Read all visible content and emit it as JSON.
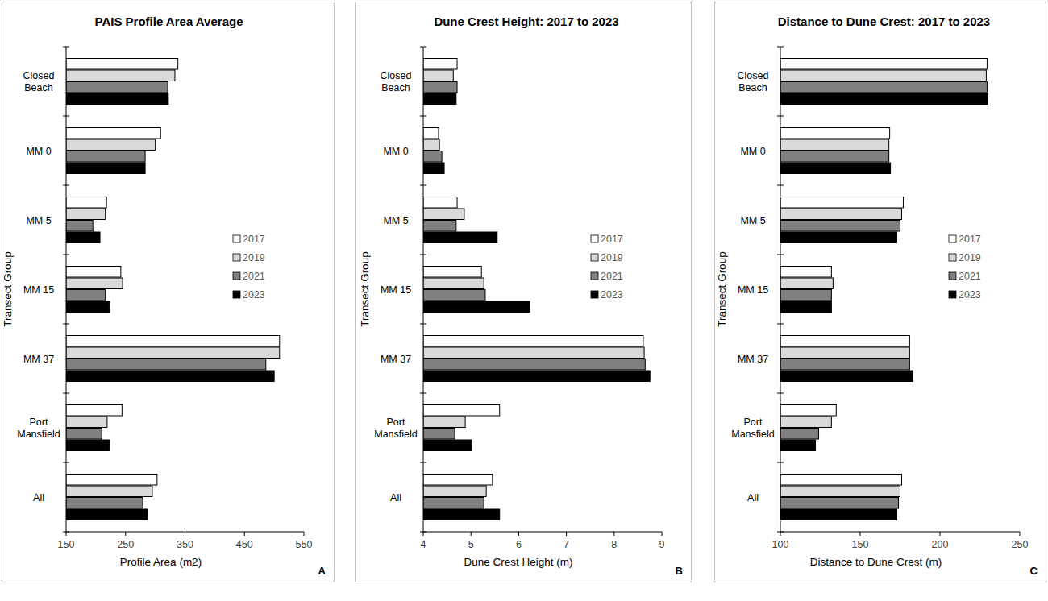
{
  "chart_data": [
    {
      "type": "bar",
      "orientation": "horizontal",
      "title": "PAIS Profile Area Average",
      "x_label": "Profile Area (m2)",
      "y_label": "Transect Group",
      "annotations": [
        "A"
      ],
      "categories": [
        "Closed Beach",
        "MM 0",
        "MM 5",
        "MM 15",
        "MM 37",
        "Port Mansfield",
        "All"
      ],
      "series": [
        {
          "name": "2017",
          "color": "#ffffff",
          "values": [
            338,
            309,
            218,
            242,
            509,
            244,
            303
          ]
        },
        {
          "name": "2019",
          "color": "#d9d9d9",
          "values": [
            333,
            300,
            216,
            245,
            509,
            219,
            295
          ]
        },
        {
          "name": "2021",
          "color": "#808080",
          "values": [
            321,
            283,
            195,
            216,
            486,
            210,
            279
          ]
        },
        {
          "name": "2023",
          "color": "#000000",
          "values": [
            322,
            283,
            207,
            223,
            500,
            223,
            287
          ]
        }
      ],
      "xlim": [
        150,
        550
      ],
      "xticks": [
        150,
        250,
        350,
        450,
        550
      ],
      "grid": false,
      "legend": "right"
    },
    {
      "type": "bar",
      "orientation": "horizontal",
      "title": "Dune Crest Height: 2017 to 2023",
      "x_label": "Dune Crest Height (m)",
      "y_label": "Transect Group",
      "annotations": [
        "B"
      ],
      "categories": [
        "Closed Beach",
        "MM 0",
        "MM 5",
        "MM 15",
        "MM 37",
        "Port Mansfield",
        "All"
      ],
      "series": [
        {
          "name": "2017",
          "color": "#ffffff",
          "values": [
            4.71,
            4.32,
            4.71,
            5.22,
            8.61,
            5.6,
            5.45
          ]
        },
        {
          "name": "2019",
          "color": "#d9d9d9",
          "values": [
            4.63,
            4.34,
            4.86,
            5.27,
            8.63,
            4.88,
            5.32
          ]
        },
        {
          "name": "2021",
          "color": "#808080",
          "values": [
            4.71,
            4.39,
            4.69,
            5.3,
            8.65,
            4.66,
            5.27
          ]
        },
        {
          "name": "2023",
          "color": "#000000",
          "values": [
            4.69,
            4.44,
            5.55,
            6.23,
            8.75,
            5.01,
            5.6
          ]
        }
      ],
      "xlim": [
        4,
        9
      ],
      "xticks": [
        4,
        5,
        6,
        7,
        8,
        9
      ],
      "grid": false,
      "legend": "right"
    },
    {
      "type": "bar",
      "orientation": "horizontal",
      "title": "Distance to Dune Crest: 2017 to 2023",
      "x_label": "Distance to Dune Crest (m)",
      "y_label": "Transect Group",
      "annotations": [
        "C"
      ],
      "categories": [
        "Closed Beach",
        "MM 0",
        "MM 5",
        "MM 15",
        "MM 37",
        "Port Mansfield",
        "All"
      ],
      "series": [
        {
          "name": "2017",
          "color": "#ffffff",
          "values": [
            229.5,
            168.5,
            177,
            132,
            181,
            135,
            176
          ]
        },
        {
          "name": "2019",
          "color": "#d9d9d9",
          "values": [
            229,
            168,
            176,
            133,
            181,
            132,
            175
          ]
        },
        {
          "name": "2021",
          "color": "#808080",
          "values": [
            229.5,
            168,
            175,
            132,
            181,
            124,
            174
          ]
        },
        {
          "name": "2023",
          "color": "#000000",
          "values": [
            230,
            169,
            173,
            132,
            183,
            122,
            173
          ]
        }
      ],
      "xlim": [
        100,
        250
      ],
      "xticks": [
        100,
        150,
        200,
        250
      ],
      "grid": false,
      "legend": "right"
    }
  ]
}
